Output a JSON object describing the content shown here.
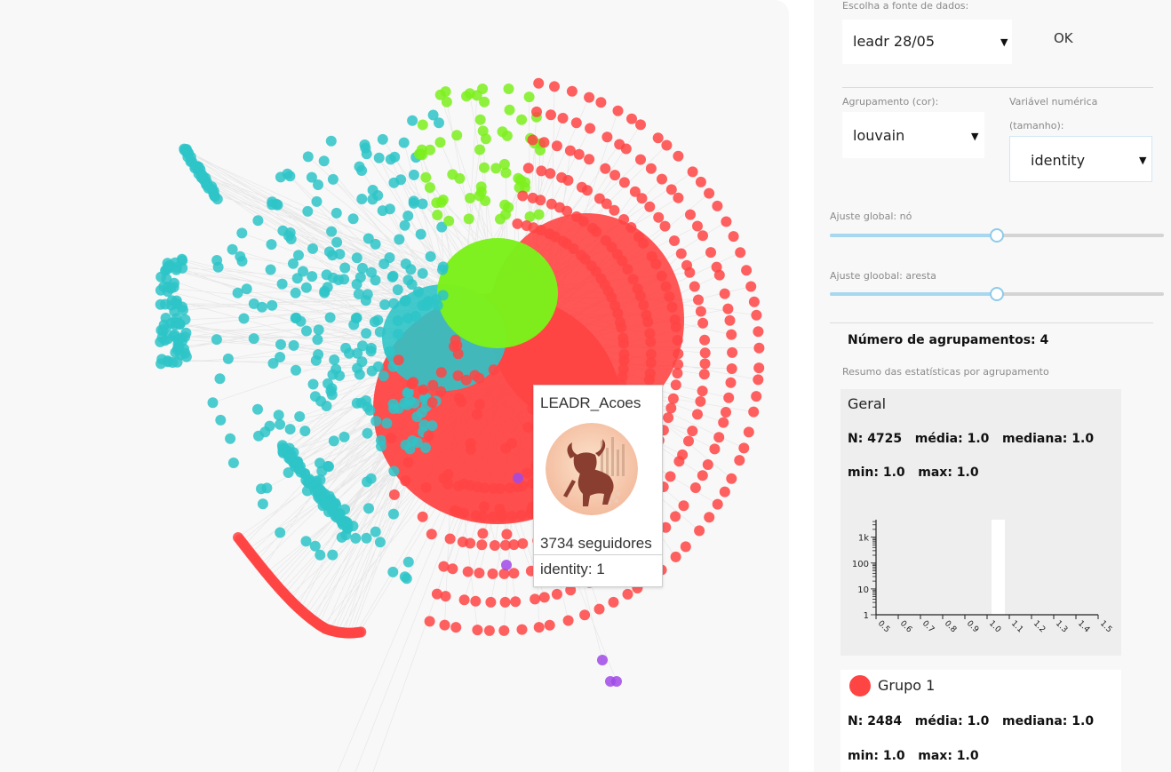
{
  "colors": {
    "cluster_red": "#ff4444",
    "cluster_cyan": "#2ec4c8",
    "cluster_green": "#7cf01c",
    "cluster_purple": "#a14ae8",
    "slider": "#8ecbea",
    "card_bg": "#eeeeee"
  },
  "tooltip": {
    "name": "LEADR_Acoes",
    "avatar_icon": "bull-avatar-icon",
    "followers": "3734 seguidores",
    "identity": "identity: 1"
  },
  "controls": {
    "data_source_label": "Escolha a fonte de dados:",
    "data_source_value": "leadr 28/05",
    "ok_label": "OK",
    "grouping_label": "Agrupamento (cor):",
    "grouping_value": "louvain",
    "numeric_label_1": "Variável numérica",
    "numeric_label_2": "(tamanho):",
    "numeric_value": "identity",
    "node_adjust_label": "Ajuste global: nó",
    "node_adjust_value": 0.5,
    "edge_adjust_label": "Ajuste gloobal: aresta",
    "edge_adjust_value": 0.5
  },
  "summary": {
    "clusters_count_label": "Número de agrupamentos: 4",
    "stats_subtitle": "Resumo das estatísticas por agrupamento"
  },
  "general": {
    "title": "Geral",
    "line1": "N: 4725   média: 1.0   mediana: 1.0",
    "line2": "min: 1.0   max: 1.0"
  },
  "group1": {
    "title": "Grupo 1",
    "line1": "N: 2484   média: 1.0   mediana: 1.0",
    "line2": "min: 1.0   max: 1.0"
  },
  "chart_data": {
    "type": "bar",
    "scale": "log",
    "y_ticks": [
      "1",
      "10",
      "100",
      "1k"
    ],
    "x_ticks": [
      "0.5",
      "0.6",
      "0.7",
      "0.8",
      "0.9",
      "1.0",
      "1.1",
      "1.2",
      "1.3",
      "1.4",
      "1.5"
    ],
    "bars": [
      {
        "x_start": 1.02,
        "x_end": 1.08,
        "value": 4725
      }
    ],
    "xlim": [
      0.5,
      1.5
    ],
    "ylim": [
      1,
      4725
    ]
  }
}
